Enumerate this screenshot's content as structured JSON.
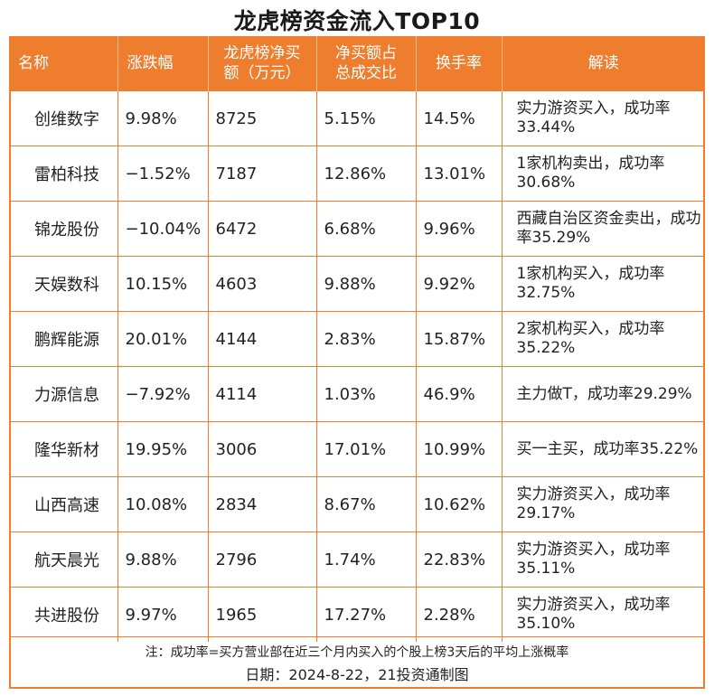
{
  "title": "龙虎榜资金流入TOP10",
  "headers": [
    "名称",
    "涨跌幅",
    "龙虎榜净买额（万元）",
    "净买额占总成交比",
    "换手率",
    "解读"
  ],
  "headers_display": [
    [
      "名称"
    ],
    [
      "涨跌幅"
    ],
    [
      "龙虎榜净买",
      "额（万元）"
    ],
    [
      "净买额占",
      "总成交比"
    ],
    [
      "换手率"
    ],
    [
      "解读"
    ]
  ],
  "rows": [
    {
      "name": "创维数字",
      "change": "9.98%",
      "net_buy": "8725",
      "ratio": "5.15%",
      "turnover": "14.5%",
      "note": "实力游资买入，成功率33.44%"
    },
    {
      "name": "雷柏科技",
      "change": "−1.52%",
      "net_buy": "7187",
      "ratio": "12.86%",
      "turnover": "13.01%",
      "note": "1家机构卖出，成功率30.68%"
    },
    {
      "name": "锦龙股份",
      "change": "−10.04%",
      "net_buy": "6472",
      "ratio": "6.68%",
      "turnover": "9.96%",
      "note": "西藏自治区资金卖出，成功率35.29%"
    },
    {
      "name": "天娱数科",
      "change": "10.15%",
      "net_buy": "4603",
      "ratio": "9.88%",
      "turnover": "9.92%",
      "note": "1家机构买入，成功率32.75%"
    },
    {
      "name": "鹏辉能源",
      "change": "20.01%",
      "net_buy": "4144",
      "ratio": "2.83%",
      "turnover": "15.87%",
      "note": "2家机构买入，成功率35.22%"
    },
    {
      "name": "力源信息",
      "change": "−7.92%",
      "net_buy": "4114",
      "ratio": "1.03%",
      "turnover": "46.9%",
      "note": "主力做T，成功率29.29%"
    },
    {
      "name": "隆华新材",
      "change": "19.95%",
      "net_buy": "3006",
      "ratio": "17.01%",
      "turnover": "10.99%",
      "note": "买一主买，成功率35.22%"
    },
    {
      "name": "山西高速",
      "change": "10.08%",
      "net_buy": "2834",
      "ratio": "8.67%",
      "turnover": "10.62%",
      "note": "实力游资买入，成功率29.17%"
    },
    {
      "name": "航天晨光",
      "change": "9.88%",
      "net_buy": "2796",
      "ratio": "1.74%",
      "turnover": "22.83%",
      "note": "实力游资买入，成功率35.11%"
    },
    {
      "name": "共进股份",
      "change": "9.97%",
      "net_buy": "1965",
      "ratio": "17.27%",
      "turnover": "2.28%",
      "note": "实力游资买入，成功率35.10%"
    }
  ],
  "footnote": "注：成功率=买方营业部在近三个月内买入的个股上榜3天后的平均上涨概率",
  "date_line": "日期：2024-8-22，21投资通制图",
  "colors": {
    "accent": "#EE7D2E",
    "header_text": "#FFFFFF"
  }
}
